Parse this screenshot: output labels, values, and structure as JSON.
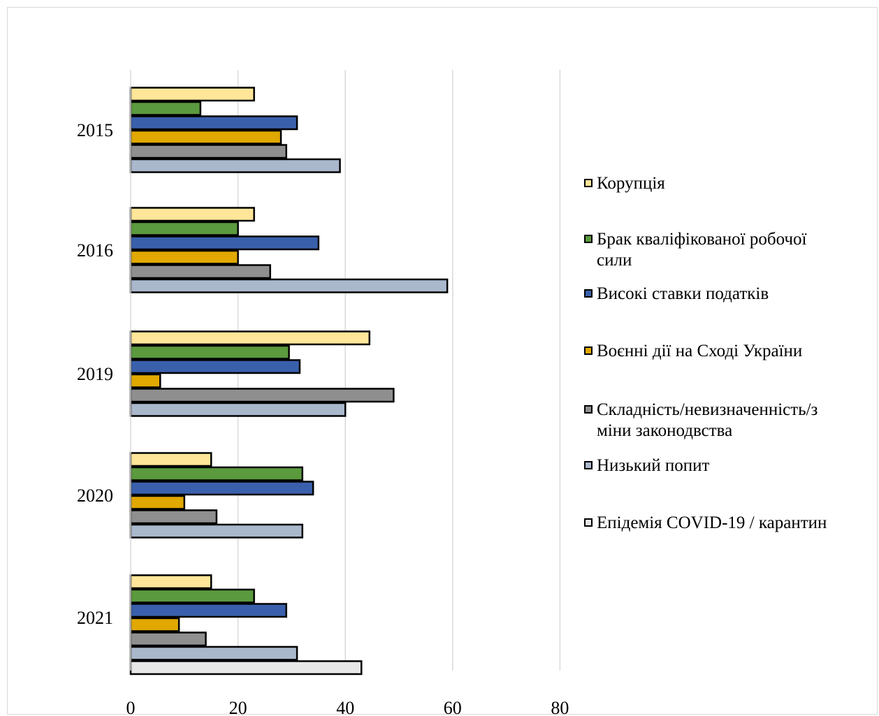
{
  "chart_data": {
    "type": "bar",
    "orientation": "horizontal",
    "categories": [
      "2015",
      "2016",
      "2019",
      "2020",
      "2021"
    ],
    "series": [
      {
        "name": "Корупція",
        "color": "#ffe699",
        "values": [
          23,
          23,
          44.5,
          15,
          15
        ]
      },
      {
        "name": "Брак кваліфікованої робочої сили",
        "color": "#5b9a3e",
        "values": [
          13,
          20,
          29.5,
          32,
          23
        ]
      },
      {
        "name": "Високі ставки податків",
        "color": "#3a60ac",
        "values": [
          31,
          35,
          31.5,
          34,
          29
        ]
      },
      {
        "name": "Воєнні дії на Сході України",
        "color": "#e0a800",
        "values": [
          28,
          20,
          5.5,
          10,
          9
        ]
      },
      {
        "name": "Складність/невизначенність/зміни законодвства",
        "color": "#8f8f8f",
        "values": [
          29,
          26,
          49,
          16,
          14
        ]
      },
      {
        "name": "Низький попит",
        "color": "#aab8cc",
        "values": [
          39,
          59,
          40,
          32,
          31
        ]
      },
      {
        "name": "Епідемія COVID-19 / карантин",
        "color": "#e7e7e7",
        "values": [
          null,
          null,
          null,
          null,
          43
        ]
      }
    ],
    "x_ticks": [
      "0",
      "20",
      "40",
      "60",
      "80"
    ],
    "xlim": [
      0,
      80
    ],
    "grid": "vertical",
    "legend_placement": "right",
    "legend_lines": [
      [
        "Корупція"
      ],
      [
        "Брак кваліфікованої робочої",
        "сили"
      ],
      [
        "Високі ставки податків"
      ],
      [
        "Воєнні дії на Сході України"
      ],
      [
        "Складність/невизначенність/з",
        "міни законодвства"
      ],
      [
        "Низький попит"
      ],
      [
        "Епідемія COVID-19 / карантин"
      ]
    ]
  }
}
